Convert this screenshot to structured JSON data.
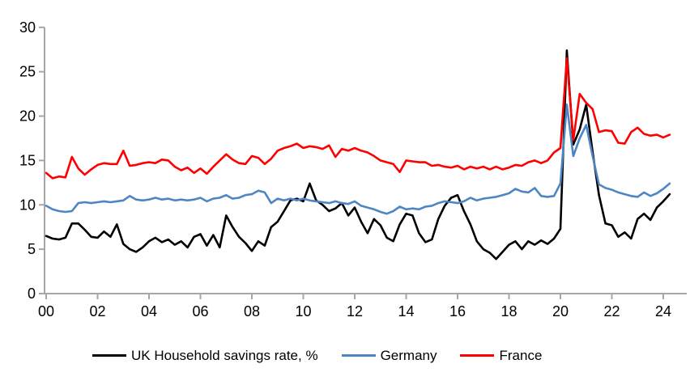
{
  "colors": {
    "axis": "#a6a6a6",
    "uk": "#000000",
    "germany": "#4e86c4",
    "france": "#fe0000",
    "text": "#000000",
    "background": "#ffffff"
  },
  "chart_data": {
    "type": "line",
    "title": "",
    "xlabel": "",
    "ylabel": "",
    "grid": false,
    "legend_position": "bottom",
    "x_start_year": 2000,
    "x_step_years": 0.25,
    "x_tick_labels": [
      "00",
      "02",
      "04",
      "06",
      "08",
      "10",
      "12",
      "14",
      "16",
      "18",
      "20",
      "22",
      "24"
    ],
    "x_tick_years": [
      2000,
      2002,
      2004,
      2006,
      2008,
      2010,
      2012,
      2014,
      2016,
      2018,
      2020,
      2022,
      2024
    ],
    "y_ticks": [
      "0",
      "5",
      "10",
      "15",
      "20",
      "25",
      "30"
    ],
    "y_tick_values": [
      0,
      5,
      10,
      15,
      20,
      25,
      30
    ],
    "ylim": [
      0,
      30
    ],
    "xlim_years": [
      2000,
      2024.5
    ],
    "series": [
      {
        "name": "UK Household savings rate, %",
        "color": "#000000",
        "values": [
          6.5,
          6.2,
          6.1,
          6.3,
          7.9,
          7.9,
          7.2,
          6.4,
          6.3,
          7.0,
          6.4,
          7.8,
          5.6,
          5.0,
          4.7,
          5.2,
          5.9,
          6.3,
          5.8,
          6.1,
          5.5,
          5.9,
          5.2,
          6.4,
          6.7,
          5.4,
          6.6,
          5.2,
          8.8,
          7.5,
          6.4,
          5.7,
          4.8,
          5.9,
          5.4,
          7.5,
          8.1,
          9.3,
          10.5,
          10.7,
          10.4,
          12.4,
          10.5,
          10.0,
          9.3,
          9.6,
          10.2,
          8.8,
          9.7,
          8.1,
          6.8,
          8.4,
          7.7,
          6.3,
          5.9,
          7.8,
          9.0,
          8.8,
          6.8,
          5.8,
          6.1,
          8.4,
          9.9,
          10.8,
          11.1,
          9.3,
          7.8,
          5.9,
          5.0,
          4.6,
          3.9,
          4.7,
          5.5,
          5.9,
          5.0,
          5.9,
          5.5,
          6.0,
          5.6,
          6.2,
          7.3,
          27.4,
          16.8,
          18.5,
          21.3,
          16.0,
          11.1,
          7.9,
          7.7,
          6.4,
          6.9,
          6.2,
          8.4,
          9.0,
          8.3,
          9.7,
          10.4,
          11.2
        ]
      },
      {
        "name": "Germany",
        "color": "#4e86c4",
        "values": [
          9.9,
          9.5,
          9.3,
          9.2,
          9.3,
          10.2,
          10.3,
          10.2,
          10.3,
          10.4,
          10.3,
          10.4,
          10.5,
          11.0,
          10.6,
          10.5,
          10.6,
          10.8,
          10.6,
          10.7,
          10.5,
          10.6,
          10.5,
          10.6,
          10.8,
          10.4,
          10.7,
          10.8,
          11.1,
          10.7,
          10.8,
          11.1,
          11.2,
          11.6,
          11.4,
          10.2,
          10.7,
          10.5,
          10.7,
          10.5,
          10.7,
          10.5,
          10.4,
          10.3,
          10.2,
          10.4,
          10.2,
          10.1,
          10.4,
          9.9,
          9.7,
          9.5,
          9.2,
          9.0,
          9.3,
          9.8,
          9.5,
          9.6,
          9.5,
          9.8,
          9.9,
          10.2,
          10.4,
          10.3,
          10.2,
          10.4,
          10.8,
          10.5,
          10.7,
          10.8,
          10.9,
          11.1,
          11.3,
          11.8,
          11.5,
          11.4,
          11.9,
          11.0,
          10.9,
          11.0,
          12.4,
          21.3,
          15.5,
          17.5,
          19.0,
          15.5,
          12.3,
          11.9,
          11.7,
          11.4,
          11.2,
          11.0,
          10.9,
          11.4,
          11.0,
          11.3,
          11.8,
          12.4
        ]
      },
      {
        "name": "France",
        "color": "#fe0000",
        "values": [
          13.6,
          13.0,
          13.2,
          13.1,
          15.4,
          14.1,
          13.4,
          14.0,
          14.5,
          14.7,
          14.6,
          14.6,
          16.1,
          14.4,
          14.5,
          14.7,
          14.8,
          14.7,
          15.1,
          15.0,
          14.3,
          13.9,
          14.2,
          13.6,
          14.1,
          13.5,
          14.3,
          15.0,
          15.7,
          15.1,
          14.7,
          14.6,
          15.5,
          15.3,
          14.6,
          15.2,
          16.1,
          16.4,
          16.6,
          16.9,
          16.4,
          16.6,
          16.5,
          16.3,
          16.7,
          15.4,
          16.3,
          16.1,
          16.4,
          16.1,
          15.9,
          15.5,
          15.0,
          14.8,
          14.6,
          13.7,
          15.0,
          14.9,
          14.8,
          14.8,
          14.4,
          14.5,
          14.3,
          14.2,
          14.4,
          14.0,
          14.3,
          14.1,
          14.3,
          14.0,
          14.3,
          14.0,
          14.2,
          14.5,
          14.4,
          14.8,
          15.0,
          14.7,
          15.0,
          15.9,
          16.4,
          26.5,
          17.3,
          22.5,
          21.5,
          20.8,
          18.2,
          18.4,
          18.3,
          17.0,
          16.9,
          18.2,
          18.7,
          18.0,
          17.8,
          17.9,
          17.6,
          17.9
        ]
      }
    ]
  },
  "legend": {
    "items": [
      {
        "label": "UK Household savings rate, %"
      },
      {
        "label": "Germany"
      },
      {
        "label": "France"
      }
    ]
  }
}
